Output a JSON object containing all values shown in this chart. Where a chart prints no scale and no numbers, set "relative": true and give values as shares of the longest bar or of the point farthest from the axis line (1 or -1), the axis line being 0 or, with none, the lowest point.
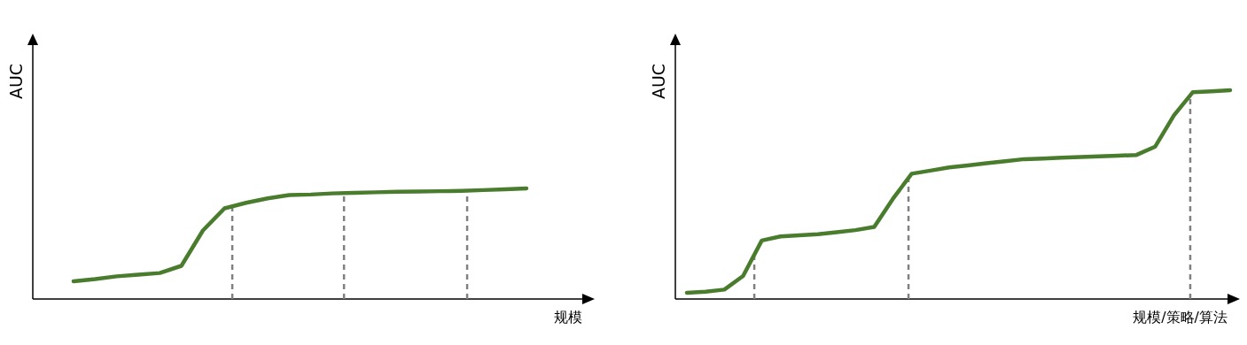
{
  "chart_data": [
    {
      "type": "line",
      "relative": true,
      "ylabel": "AUC",
      "xlabel": "规模",
      "line_style": "solid",
      "categories": [
        null,
        null,
        null,
        null,
        null,
        null,
        null,
        null,
        null,
        null,
        null,
        null,
        null,
        null,
        null,
        null,
        null,
        null,
        null,
        null,
        null,
        null
      ],
      "series": [
        {
          "color": "#4a7c2e",
          "values": [
            0.16,
            0.18,
            0.205,
            0.22,
            0.235,
            0.3,
            0.62,
            0.82,
            0.87,
            0.91,
            0.94,
            0.945,
            0.955,
            0.96,
            0.965,
            0.97,
            0.972,
            0.975,
            0.978,
            0.985,
            0.992,
            1
          ]
        }
      ]
    },
    {
      "type": "line",
      "relative": true,
      "ylabel": "AUC",
      "xlabel": "规模/策略/算法",
      "line_style": "solid",
      "categories": [
        null,
        null,
        null,
        null,
        null,
        null,
        null,
        null,
        null,
        null,
        null,
        null,
        null,
        null,
        null,
        null,
        null,
        null,
        null,
        null,
        null,
        null,
        null,
        null,
        null,
        null,
        null,
        null,
        null,
        null
      ],
      "series": [
        {
          "color": "#4a7c2e",
          "values": [
            0.03,
            0.035,
            0.045,
            0.11,
            0.28,
            0.3,
            0.305,
            0.31,
            0.32,
            0.33,
            0.345,
            0.48,
            0.6,
            0.615,
            0.63,
            0.64,
            0.65,
            0.66,
            0.67,
            0.673,
            0.677,
            0.68,
            0.683,
            0.686,
            0.69,
            0.73,
            0.88,
            0.99,
            0.995,
            1
          ]
        }
      ]
    }
  ]
}
